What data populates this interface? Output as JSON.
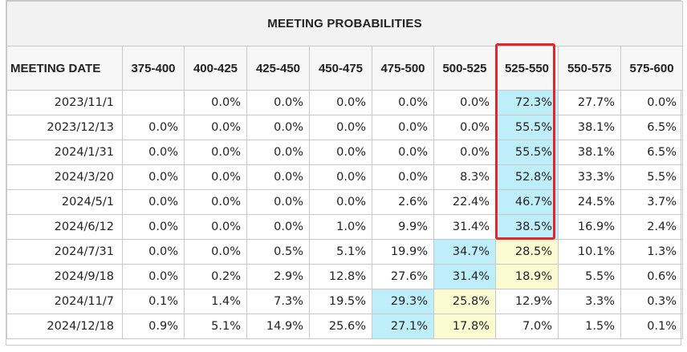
{
  "title": "MEETING PROBABILITIES",
  "columns": [
    "MEETING DATE",
    "375-400",
    "400-425",
    "425-450",
    "450-475",
    "475-500",
    "500-525",
    "525-550",
    "550-575",
    "575-600"
  ],
  "rows": [
    {
      "date": "2023/11/1",
      "values": [
        "",
        "0.0%",
        "0.0%",
        "0.0%",
        "0.0%",
        "0.0%",
        "72.3%",
        "27.7%",
        "0.0%"
      ]
    },
    {
      "date": "2023/12/13",
      "values": [
        "0.0%",
        "0.0%",
        "0.0%",
        "0.0%",
        "0.0%",
        "0.0%",
        "55.5%",
        "38.1%",
        "6.5%"
      ]
    },
    {
      "date": "2024/1/31",
      "values": [
        "0.0%",
        "0.0%",
        "0.0%",
        "0.0%",
        "0.0%",
        "0.0%",
        "55.5%",
        "38.1%",
        "6.5%"
      ]
    },
    {
      "date": "2024/3/20",
      "values": [
        "0.0%",
        "0.0%",
        "0.0%",
        "0.0%",
        "0.0%",
        "8.3%",
        "52.8%",
        "33.3%",
        "5.5%"
      ]
    },
    {
      "date": "2024/5/1",
      "values": [
        "0.0%",
        "0.0%",
        "0.0%",
        "0.0%",
        "2.6%",
        "22.4%",
        "46.7%",
        "24.5%",
        "3.7%"
      ]
    },
    {
      "date": "2024/6/12",
      "values": [
        "0.0%",
        "0.0%",
        "0.0%",
        "1.0%",
        "9.9%",
        "31.4%",
        "38.5%",
        "16.9%",
        "2.4%"
      ]
    },
    {
      "date": "2024/7/31",
      "values": [
        "0.0%",
        "0.0%",
        "0.5%",
        "5.1%",
        "19.9%",
        "34.7%",
        "28.5%",
        "10.1%",
        "1.3%"
      ]
    },
    {
      "date": "2024/9/18",
      "values": [
        "0.0%",
        "0.2%",
        "2.9%",
        "12.8%",
        "27.6%",
        "31.4%",
        "18.9%",
        "5.5%",
        "0.6%"
      ]
    },
    {
      "date": "2024/11/7",
      "values": [
        "0.1%",
        "1.4%",
        "7.3%",
        "19.5%",
        "29.3%",
        "25.8%",
        "12.9%",
        "3.3%",
        "0.3%"
      ]
    },
    {
      "date": "2024/12/18",
      "values": [
        "0.9%",
        "5.1%",
        "14.9%",
        "25.6%",
        "27.1%",
        "17.8%",
        "7.0%",
        "1.5%",
        "0.1%"
      ]
    }
  ],
  "highlight_colors": {
    "max": "#bfeefb",
    "second": "#fbfbd2",
    "box": "#e4262b"
  },
  "cell_highlights": [
    {
      "row": 0,
      "col": 6,
      "level": "max"
    },
    {
      "row": 1,
      "col": 6,
      "level": "max"
    },
    {
      "row": 2,
      "col": 6,
      "level": "max"
    },
    {
      "row": 3,
      "col": 6,
      "level": "max"
    },
    {
      "row": 4,
      "col": 6,
      "level": "max"
    },
    {
      "row": 5,
      "col": 6,
      "level": "max"
    },
    {
      "row": 6,
      "col": 5,
      "level": "max"
    },
    {
      "row": 6,
      "col": 6,
      "level": "second"
    },
    {
      "row": 7,
      "col": 5,
      "level": "max"
    },
    {
      "row": 7,
      "col": 6,
      "level": "second"
    },
    {
      "row": 8,
      "col": 4,
      "level": "max"
    },
    {
      "row": 8,
      "col": 5,
      "level": "second"
    },
    {
      "row": 9,
      "col": 4,
      "level": "max"
    },
    {
      "row": 9,
      "col": 5,
      "level": "second"
    }
  ],
  "annotation": {
    "type": "red-box",
    "column": "525-550",
    "rows_from": 0,
    "rows_to": 5
  }
}
